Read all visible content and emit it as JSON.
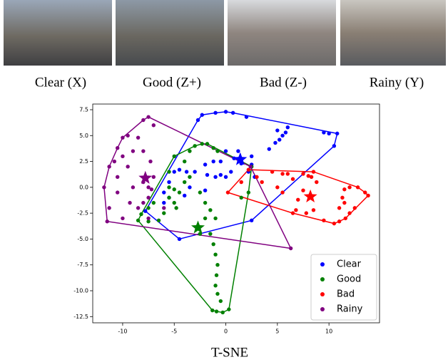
{
  "images": [
    {
      "caption": "Clear (X)"
    },
    {
      "caption": "Good (Z+)"
    },
    {
      "caption": "Bad (Z-)"
    },
    {
      "caption": "Rainy (Y)"
    }
  ],
  "caption": "T-SNE",
  "chart_data": {
    "type": "scatter",
    "xlim": [
      -12.9,
      14.9
    ],
    "ylim": [
      -13.1,
      8.05
    ],
    "xticks": [
      -10,
      -5,
      0,
      5,
      10
    ],
    "yticks": [
      {
        "value": -12.5,
        "label": "-12.5"
      },
      {
        "value": -10,
        "label": "-10.0"
      },
      {
        "value": -7.5,
        "label": "-7.5"
      },
      {
        "value": -5,
        "label": "-5.0"
      },
      {
        "value": -2.5,
        "label": "-2.5"
      },
      {
        "value": 0,
        "label": "0.0"
      },
      2.5,
      {
        "value": 5,
        "label": "5.0"
      },
      7.5
    ],
    "legend": "lower right",
    "series": [
      {
        "name": "Clear",
        "color": "#0000ff",
        "x": [
          -2.7,
          -2.3,
          -1,
          0,
          0.7,
          2,
          5,
          6,
          9.5,
          10,
          10.8,
          10.5,
          5.8,
          5.5,
          5.2,
          4.8,
          4.2,
          -5,
          -4.5,
          -3.8,
          -3,
          -2,
          -1.8,
          -1,
          -0.5,
          -1.2,
          0,
          0.5,
          0.8,
          1.2,
          1.5,
          2.2,
          2.5,
          2.8,
          2.5,
          -5.5,
          -6,
          -6,
          -5.5,
          -3.5,
          -4,
          -2,
          -4.5,
          2.5,
          -7.8,
          0,
          -0.5
        ],
        "y": [
          6.5,
          7.0,
          7.2,
          7.3,
          7.2,
          6.8,
          5.5,
          5.8,
          5.3,
          5.2,
          5.2,
          4.0,
          5.3,
          5.0,
          4.6,
          4.3,
          3.7,
          1.5,
          1.7,
          1.5,
          1.5,
          2.2,
          1.2,
          1,
          1.2,
          2.5,
          1,
          1.5,
          2.8,
          3.5,
          2.3,
          1.5,
          2.2,
          1,
          3.0,
          0.5,
          -0.5,
          -1.5,
          -1,
          0,
          -0.8,
          -0.3,
          -5,
          -3.2,
          -2.3,
          3.5,
          2.5
        ],
        "center_x": 1.4,
        "center_y": 2.7
      },
      {
        "name": "Good",
        "color": "#008000",
        "x": [
          -8.5,
          -8.2,
          -7.5,
          -7,
          -5,
          -5.5,
          -4.5,
          -5,
          -4.8,
          -6,
          -7.5,
          -6.5,
          -5.5,
          -4,
          -3.5,
          -4,
          -5.5,
          -5,
          -3.5,
          -3,
          -2.3,
          -1.8,
          -1.2,
          -0.8,
          -2.5,
          -2,
          -1.5,
          -1,
          -2,
          -1.5,
          -1.2,
          -1,
          -0.8,
          -0.9,
          -1,
          -0.8,
          -0.5,
          -1.3,
          -0.9,
          -0.3,
          0.3,
          -2.5,
          2.5,
          1.5,
          2.2
        ],
        "y": [
          -3.2,
          -2.6,
          -2,
          -1.5,
          -0.2,
          0,
          -0.5,
          -1.5,
          -2,
          -2.5,
          -3.3,
          -3.2,
          -1,
          0.5,
          1,
          2.5,
          1.5,
          3,
          3.5,
          4,
          4.2,
          4.2,
          3.8,
          3.5,
          -0.5,
          -1.5,
          -2.2,
          -3,
          -3,
          -4.5,
          -5.5,
          -6.5,
          -7.5,
          -8.5,
          -9.5,
          -10.3,
          -11,
          -11.9,
          -12,
          -12.1,
          -11.8,
          -4.5,
          2.0,
          -1,
          -0.5
        ],
        "center_x": -2.7,
        "center_y": -3.9
      },
      {
        "name": "Bad",
        "color": "#ff0000",
        "x": [
          0.2,
          1.5,
          2.2,
          3,
          3.5,
          4.5,
          5.5,
          6,
          5,
          5.5,
          6.5,
          7.5,
          8,
          8.3,
          8.5,
          8.8,
          7.5,
          7,
          6.8,
          6.5,
          7.8,
          8.5,
          9.5,
          10.5,
          11,
          11.6,
          12,
          11.5,
          12.5,
          11.5,
          12,
          12.8,
          13.5,
          13.8,
          11,
          11.3
        ],
        "y": [
          -0.5,
          0.5,
          1.7,
          1,
          0.5,
          1.5,
          1.3,
          1.3,
          0,
          -0.5,
          0.8,
          1.3,
          1.1,
          1.0,
          1.5,
          0.5,
          -0.3,
          -1.2,
          -2.2,
          -2.5,
          -2.5,
          -2.2,
          -3.2,
          -3.5,
          -3.3,
          -3,
          -2.5,
          -1.5,
          -2,
          -0.2,
          0,
          0,
          -0.5,
          -0.8,
          -2,
          -1
        ],
        "center_x": 8.2,
        "center_y": -0.9
      },
      {
        "name": "Rainy",
        "color": "#800080",
        "x": [
          -11.5,
          -11.3,
          -11.8,
          -11.3,
          -10.5,
          -10,
          -8,
          -7.5,
          -9.5,
          -8.5,
          -9,
          -10,
          -10.8,
          -9.5,
          -10.5,
          -10.5,
          -9,
          -9.3,
          -8.5,
          -8,
          -7.5,
          -7.5,
          -7,
          -7.3,
          -8,
          -7,
          -7.5,
          -6,
          -10,
          2.4,
          6.3,
          -8,
          -7.2
        ],
        "y": [
          -3.3,
          -2,
          0,
          2,
          3.8,
          4.8,
          6.5,
          6.8,
          5,
          4.8,
          3.5,
          3,
          2.5,
          2,
          1,
          -0.5,
          0,
          -1.5,
          -2,
          -1.5,
          -1,
          0,
          1,
          2.5,
          3.5,
          6,
          -3,
          -2,
          -3,
          2.0,
          -5.9,
          0.5,
          -0.2
        ],
        "center_x": -7.8,
        "center_y": 0.9
      }
    ]
  }
}
